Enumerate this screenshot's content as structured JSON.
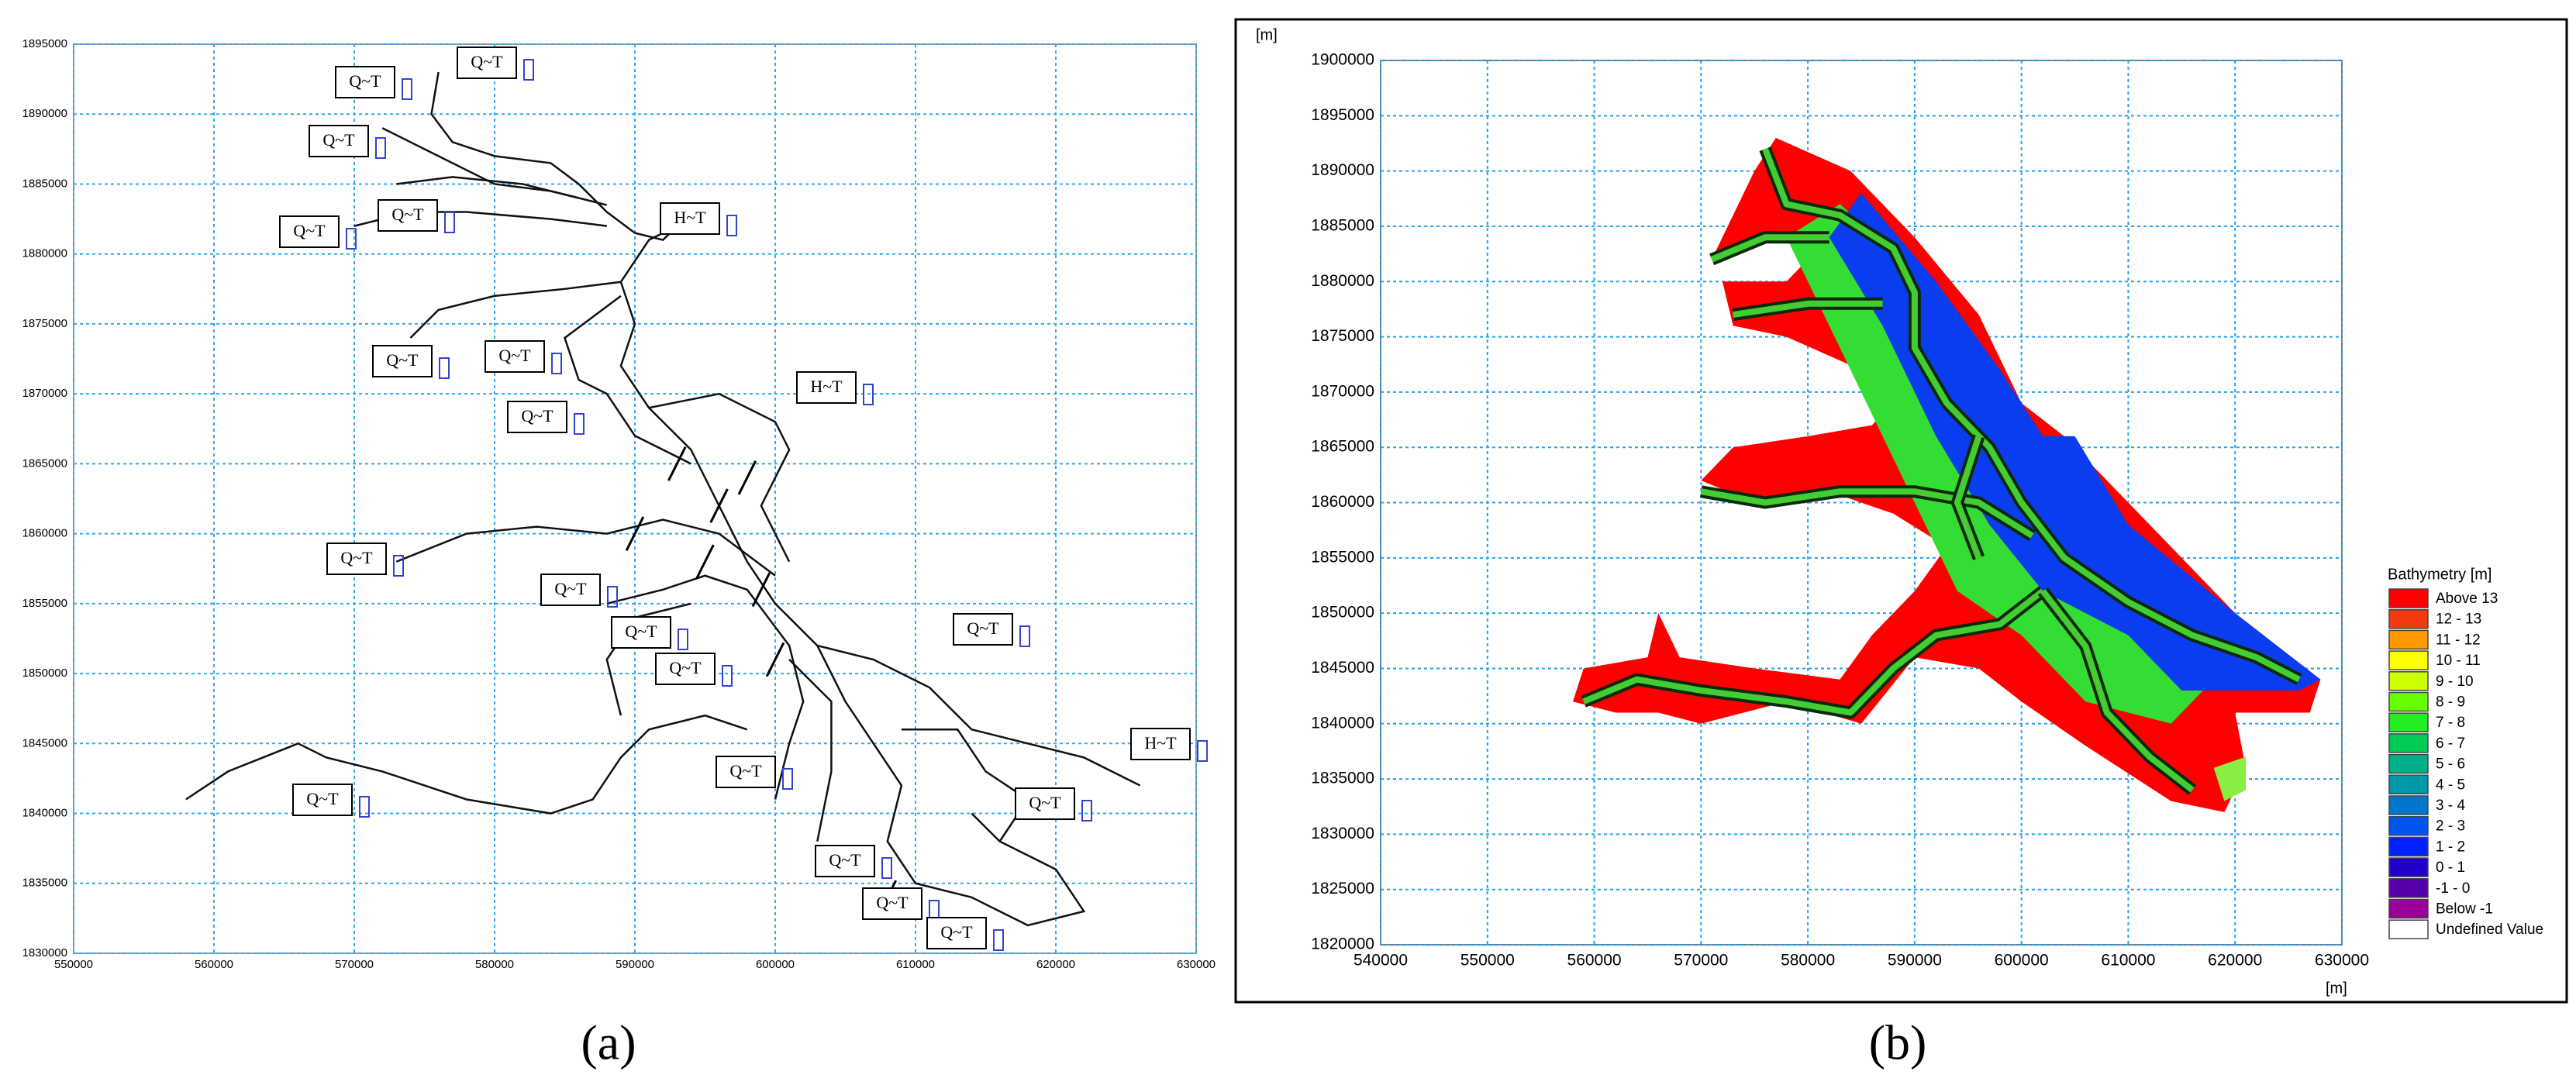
{
  "panel_a": {
    "caption": "(a)",
    "xlim": [
      550000,
      630000
    ],
    "xticks": [
      550000,
      560000,
      570000,
      580000,
      590000,
      600000,
      610000,
      620000,
      630000
    ],
    "ylim": [
      1830000,
      1895000
    ],
    "yticks": [
      1830000,
      1835000,
      1840000,
      1845000,
      1850000,
      1855000,
      1860000,
      1865000,
      1870000,
      1875000,
      1880000,
      1885000,
      1890000,
      1895000
    ],
    "boundary_labels": [
      "Q~T",
      "Q~T",
      "Q~T",
      "Q~T",
      "Q~T",
      "H~T",
      "Q~T",
      "Q~T",
      "H~T",
      "Q~T",
      "Q~T",
      "Q~T",
      "Q~T",
      "Q~T",
      "Q~T",
      "H~T",
      "Q~T",
      "Q~T",
      "Q~T",
      "Q~T",
      "Q~T",
      "Q~T"
    ]
  },
  "panel_b": {
    "caption": "(b)",
    "x_unit": "[m]",
    "y_unit": "[m]",
    "xlim": [
      540000,
      630000
    ],
    "xticks": [
      540000,
      550000,
      560000,
      570000,
      580000,
      590000,
      600000,
      610000,
      620000,
      630000
    ],
    "ylim": [
      1820000,
      1900000
    ],
    "yticks": [
      1820000,
      1825000,
      1830000,
      1835000,
      1840000,
      1845000,
      1850000,
      1855000,
      1860000,
      1865000,
      1870000,
      1875000,
      1880000,
      1885000,
      1890000,
      1895000,
      1900000
    ],
    "legend_title": "Bathymetry [m]",
    "legend": [
      {
        "label": "Above 13",
        "color": "#ff0000"
      },
      {
        "label": "12 - 13",
        "color": "#f23a10"
      },
      {
        "label": "11 - 12",
        "color": "#ff9900"
      },
      {
        "label": "10 - 11",
        "color": "#ffff00"
      },
      {
        "label": "9 - 10",
        "color": "#ccff00"
      },
      {
        "label": "8 - 9",
        "color": "#66ff00"
      },
      {
        "label": "7 - 8",
        "color": "#22ee22"
      },
      {
        "label": "6 - 7",
        "color": "#00cc55"
      },
      {
        "label": "5 - 6",
        "color": "#00b08a"
      },
      {
        "label": "4 - 5",
        "color": "#0099aa"
      },
      {
        "label": "3 - 4",
        "color": "#0077cc"
      },
      {
        "label": "2 - 3",
        "color": "#0055ee"
      },
      {
        "label": "1 - 2",
        "color": "#0022ff"
      },
      {
        "label": "0 - 1",
        "color": "#2200cc"
      },
      {
        "label": "-1 - 0",
        "color": "#5500aa"
      },
      {
        "label": "Below -1",
        "color": "#990099"
      },
      {
        "label": "Undefined Value",
        "color": "#ffffff"
      }
    ]
  }
}
